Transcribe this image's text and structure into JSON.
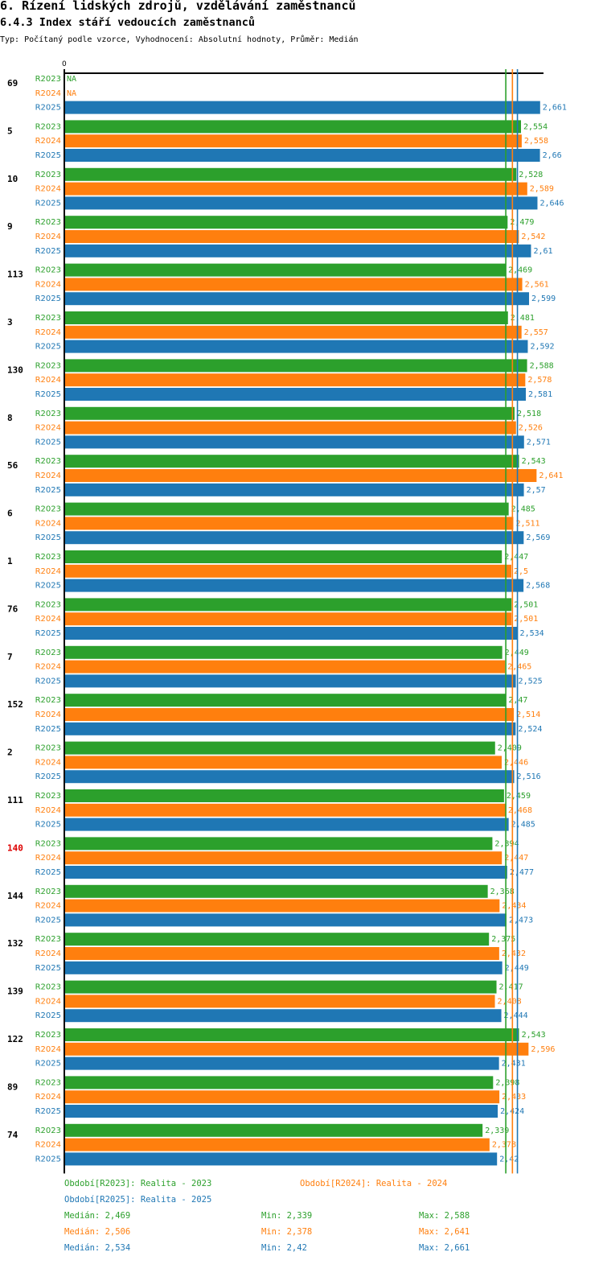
{
  "header": {
    "title": "6. Řízení lidských zdrojů, vzdělávání zaměstnanců",
    "subtitle": "6.4.3 Index stáří vedoucích zaměstnanců",
    "type_line": "Typ: Počítaný podle vzorce, Vyhodnocení: Absolutní hodnoty, Průměr: Medián"
  },
  "chart_data": {
    "type": "bar",
    "orientation": "horizontal",
    "axis_zero_label": "0",
    "xlim": [
      0,
      2.7
    ],
    "colors": {
      "R2023": "#2ca02c",
      "R2024": "#ff7f0e",
      "R2025": "#1f77b4",
      "highlight": "#dd0000"
    },
    "series_names": [
      "R2023",
      "R2024",
      "R2025"
    ],
    "categories": [
      "69",
      "5",
      "10",
      "9",
      "113",
      "3",
      "130",
      "8",
      "56",
      "6",
      "1",
      "76",
      "7",
      "152",
      "2",
      "111",
      "140",
      "144",
      "132",
      "139",
      "122",
      "89",
      "74"
    ],
    "highlight_category": "140",
    "series": [
      {
        "name": "R2023",
        "values": [
          null,
          2.554,
          2.528,
          2.479,
          2.469,
          2.481,
          2.588,
          2.518,
          2.543,
          2.485,
          2.447,
          2.501,
          2.449,
          2.47,
          2.409,
          2.459,
          2.394,
          2.368,
          2.375,
          2.417,
          2.543,
          2.398,
          2.339
        ]
      },
      {
        "name": "R2024",
        "values": [
          null,
          2.558,
          2.589,
          2.542,
          2.561,
          2.557,
          2.578,
          2.526,
          2.641,
          2.511,
          2.5,
          2.501,
          2.465,
          2.514,
          2.446,
          2.468,
          2.447,
          2.434,
          2.432,
          2.408,
          2.596,
          2.433,
          2.378
        ]
      },
      {
        "name": "R2025",
        "values": [
          2.661,
          2.66,
          2.646,
          2.61,
          2.599,
          2.592,
          2.581,
          2.571,
          2.57,
          2.569,
          2.568,
          2.534,
          2.525,
          2.524,
          2.516,
          2.485,
          2.477,
          2.473,
          2.449,
          2.444,
          2.431,
          2.424,
          2.42
        ]
      }
    ],
    "value_labels": [
      [
        "NA",
        "NA",
        "2,661"
      ],
      [
        "2,554",
        "2,558",
        "2,66"
      ],
      [
        "2,528",
        "2,589",
        "2,646"
      ],
      [
        "2,479",
        "2,542",
        "2,61"
      ],
      [
        "2,469",
        "2,561",
        "2,599"
      ],
      [
        "2,481",
        "2,557",
        "2,592"
      ],
      [
        "2,588",
        "2,578",
        "2,581"
      ],
      [
        "2,518",
        "2,526",
        "2,571"
      ],
      [
        "2,543",
        "2,641",
        "2,57"
      ],
      [
        "2,485",
        "2,511",
        "2,569"
      ],
      [
        "2,447",
        "2,5",
        "2,568"
      ],
      [
        "2,501",
        "2,501",
        "2,534"
      ],
      [
        "2,449",
        "2,465",
        "2,525"
      ],
      [
        "2,47",
        "2,514",
        "2,524"
      ],
      [
        "2,409",
        "2,446",
        "2,516"
      ],
      [
        "2,459",
        "2,468",
        "2,485"
      ],
      [
        "2,394",
        "2,447",
        "2,477"
      ],
      [
        "2,368",
        "2,434",
        "2,473"
      ],
      [
        "2,375",
        "2,432",
        "2,449"
      ],
      [
        "2,417",
        "2,408",
        "2,444"
      ],
      [
        "2,543",
        "2,596",
        "2,431"
      ],
      [
        "2,398",
        "2,433",
        "2,424"
      ],
      [
        "2,339",
        "2,378",
        "2,42"
      ]
    ],
    "median_lines": [
      2.469,
      2.506,
      2.534
    ],
    "legend": {
      "entries": [
        "Období[R2023]: Realita - 2023",
        "Období[R2024]: Realita - 2024",
        "Období[R2025]: Realita - 2025"
      ],
      "stats": [
        {
          "median": "Medián: 2,469",
          "min": "Min: 2,339",
          "max": "Max: 2,588"
        },
        {
          "median": "Medián: 2,506",
          "min": "Min: 2,378",
          "max": "Max: 2,641"
        },
        {
          "median": "Medián: 2,534",
          "min": "Min: 2,42",
          "max": "Max: 2,661"
        }
      ]
    }
  }
}
